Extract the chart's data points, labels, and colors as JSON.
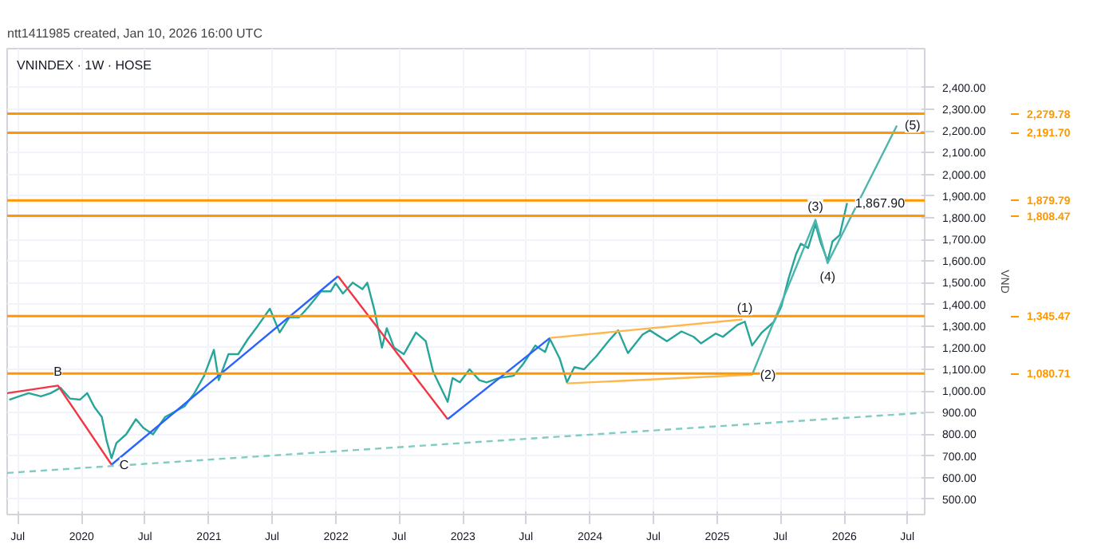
{
  "chart_data": {
    "type": "line",
    "title": "VNINDEX · 1W · HOSE",
    "ylabel": "VND",
    "annotations": [
      "ntt1411985 created, Jan 10, 2026 16:00 UTC",
      {
        "text": "B",
        "x": "2019-10-25",
        "y": 1025
      },
      {
        "text": "C",
        "x": "2020-03-27",
        "y": 660
      },
      {
        "text": "(1)",
        "x": "2025-03-21",
        "y": 1320
      },
      {
        "text": "(2)",
        "x": "2025-04-11",
        "y": 1075
      },
      {
        "text": "(3)",
        "x": "2025-10-10",
        "y": 1790
      },
      {
        "text": "(4)",
        "x": "2025-11-14",
        "y": 1590
      },
      {
        "text": "(5)",
        "x": "2026-06-01",
        "y": 2225
      },
      {
        "text": "1,867.90",
        "x": "2026-01-09",
        "y": 1867.9
      }
    ],
    "xlim": [
      "2019-06-01",
      "2026-08-20"
    ],
    "xticks": [
      {
        "value": "2019-07-01",
        "label": "Jul"
      },
      {
        "value": "2020-01-01",
        "label": "2020"
      },
      {
        "value": "2020-07-01",
        "label": "Jul"
      },
      {
        "value": "2021-01-01",
        "label": "2021"
      },
      {
        "value": "2021-07-01",
        "label": "Jul"
      },
      {
        "value": "2022-01-01",
        "label": "2022"
      },
      {
        "value": "2022-07-01",
        "label": "Jul"
      },
      {
        "value": "2023-01-01",
        "label": "2023"
      },
      {
        "value": "2023-07-01",
        "label": "Jul"
      },
      {
        "value": "2024-01-01",
        "label": "2024"
      },
      {
        "value": "2024-07-01",
        "label": "Jul"
      },
      {
        "value": "2025-01-01",
        "label": "2025"
      },
      {
        "value": "2025-07-01",
        "label": "Jul"
      },
      {
        "value": "2026-01-01",
        "label": "2026"
      },
      {
        "value": "2026-07-01",
        "label": "Jul"
      }
    ],
    "ylim": [
      430,
      2580
    ],
    "yticks": [
      {
        "value": 500,
        "label": "500.00"
      },
      {
        "value": 600,
        "label": "600.00"
      },
      {
        "value": 700,
        "label": "700.00"
      },
      {
        "value": 800,
        "label": "800.00"
      },
      {
        "value": 900,
        "label": "900.00"
      },
      {
        "value": 1000,
        "label": "1,000.00"
      },
      {
        "value": 1100,
        "label": "1,100.00"
      },
      {
        "value": 1200,
        "label": "1,200.00"
      },
      {
        "value": 1300,
        "label": "1,300.00"
      },
      {
        "value": 1400,
        "label": "1,400.00"
      },
      {
        "value": 1500,
        "label": "1,500.00"
      },
      {
        "value": 1600,
        "label": "1,600.00"
      },
      {
        "value": 1700,
        "label": "1,700.00"
      },
      {
        "value": 1800,
        "label": "1,800.00"
      },
      {
        "value": 1900,
        "label": "1,900.00"
      },
      {
        "value": 2000,
        "label": "2,000.00"
      },
      {
        "value": 2100,
        "label": "2,100.00"
      },
      {
        "value": 2200,
        "label": "2,200.00"
      },
      {
        "value": 2300,
        "label": "2,300.00"
      },
      {
        "value": 2400,
        "label": "2,400.00"
      }
    ],
    "grid": true,
    "ref_lines": [
      {
        "axis": "y",
        "value": 2279.78,
        "label": "2,279.78",
        "color": "#ff9800"
      },
      {
        "axis": "y",
        "value": 2191.7,
        "label": "2,191.70",
        "color": "#ff9800"
      },
      {
        "axis": "y",
        "value": 1879.79,
        "label": "1,879.79",
        "color": "#ff9800"
      },
      {
        "axis": "y",
        "value": 1808.47,
        "label": "1,808.47",
        "color": "#ff9800"
      },
      {
        "axis": "y",
        "value": 1345.47,
        "label": "1,345.47",
        "color": "#ff9800"
      },
      {
        "axis": "y",
        "value": 1080.71,
        "label": "1,080.71",
        "color": "#ff9800"
      }
    ],
    "series": [
      {
        "color": "#26a69a",
        "x": [
          "2019-06-07",
          "2019-07-05",
          "2019-08-02",
          "2019-09-06",
          "2019-10-04",
          "2019-11-01",
          "2019-11-29",
          "2019-12-27",
          "2020-01-17",
          "2020-02-07",
          "2020-02-28",
          "2020-03-13",
          "2020-03-27",
          "2020-04-10",
          "2020-05-08",
          "2020-06-05",
          "2020-06-26",
          "2020-07-24",
          "2020-08-28",
          "2020-09-25",
          "2020-10-23",
          "2020-11-20",
          "2020-12-18",
          "2021-01-15",
          "2021-01-29",
          "2021-02-26",
          "2021-03-26",
          "2021-04-23",
          "2021-05-21",
          "2021-06-25",
          "2021-07-23",
          "2021-08-20",
          "2021-09-17",
          "2021-10-15",
          "2021-11-19",
          "2021-12-17",
          "2021-12-31",
          "2022-01-21",
          "2022-02-18",
          "2022-03-18",
          "2022-04-01",
          "2022-04-22",
          "2022-05-13",
          "2022-05-27",
          "2022-06-17",
          "2022-07-15",
          "2022-08-19",
          "2022-09-16",
          "2022-10-07",
          "2022-10-28",
          "2022-11-18",
          "2022-12-02",
          "2022-12-23",
          "2023-01-20",
          "2023-02-17",
          "2023-03-10",
          "2023-04-14",
          "2023-05-26",
          "2023-06-23",
          "2023-07-28",
          "2023-08-25",
          "2023-09-08",
          "2023-10-06",
          "2023-10-27",
          "2023-11-17",
          "2023-12-15",
          "2024-01-19",
          "2024-02-23",
          "2024-03-22",
          "2024-04-19",
          "2024-05-31",
          "2024-06-21",
          "2024-08-09",
          "2024-09-20",
          "2024-10-25",
          "2024-11-15",
          "2024-12-27",
          "2025-01-17",
          "2025-02-28",
          "2025-03-21",
          "2025-04-11",
          "2025-05-09",
          "2025-06-13",
          "2025-07-04",
          "2025-07-25",
          "2025-08-15",
          "2025-08-29",
          "2025-09-19",
          "2025-10-10",
          "2025-10-24",
          "2025-11-14",
          "2025-11-28",
          "2025-12-19",
          "2026-01-09"
        ],
        "values": [
          960,
          975,
          990,
          975,
          990,
          1015,
          965,
          960,
          990,
          925,
          880,
          770,
          690,
          760,
          800,
          870,
          830,
          800,
          880,
          905,
          930,
          990,
          1070,
          1190,
          1050,
          1170,
          1170,
          1240,
          1300,
          1380,
          1270,
          1340,
          1340,
          1390,
          1460,
          1460,
          1498,
          1450,
          1500,
          1470,
          1500,
          1370,
          1200,
          1290,
          1200,
          1170,
          1270,
          1230,
          1090,
          1020,
          950,
          1060,
          1040,
          1100,
          1050,
          1040,
          1060,
          1070,
          1125,
          1210,
          1180,
          1240,
          1150,
          1040,
          1110,
          1100,
          1160,
          1230,
          1280,
          1175,
          1260,
          1280,
          1230,
          1275,
          1250,
          1220,
          1265,
          1250,
          1305,
          1320,
          1210,
          1270,
          1320,
          1390,
          1520,
          1630,
          1680,
          1660,
          1770,
          1690,
          1600,
          1690,
          1720,
          1867.9
        ]
      },
      {
        "color": "#f23645",
        "x": [
          "2019-06-01",
          "2019-10-25",
          "2020-03-27"
        ],
        "values": [
          990,
          1025,
          660
        ]
      },
      {
        "color": "#2962ff",
        "x": [
          "2020-03-27",
          "2022-01-07"
        ],
        "values": [
          660,
          1530
        ]
      },
      {
        "color": "#f23645",
        "x": [
          "2022-01-07",
          "2022-11-18"
        ],
        "values": [
          1530,
          870
        ]
      },
      {
        "color": "#2962ff",
        "x": [
          "2022-11-18",
          "2023-09-08"
        ],
        "values": [
          870,
          1245
        ]
      },
      {
        "color": "#ffb74d",
        "x": [
          "2023-09-08",
          "2025-03-14"
        ],
        "values": [
          1245,
          1330
        ]
      },
      {
        "color": "#ffb74d",
        "x": [
          "2023-10-27",
          "2025-04-11"
        ],
        "values": [
          1035,
          1075
        ]
      },
      {
        "color": "#4db6ac",
        "x": [
          "2025-04-11",
          "2025-10-10",
          "2025-11-14",
          "2026-06-01"
        ],
        "values": [
          1075,
          1790,
          1590,
          2225
        ]
      },
      {
        "color": "#80cbc4",
        "x": [
          "2019-06-01",
          "2026-08-20"
        ],
        "values": [
          622,
          900
        ],
        "line_style": "dashed"
      }
    ]
  }
}
